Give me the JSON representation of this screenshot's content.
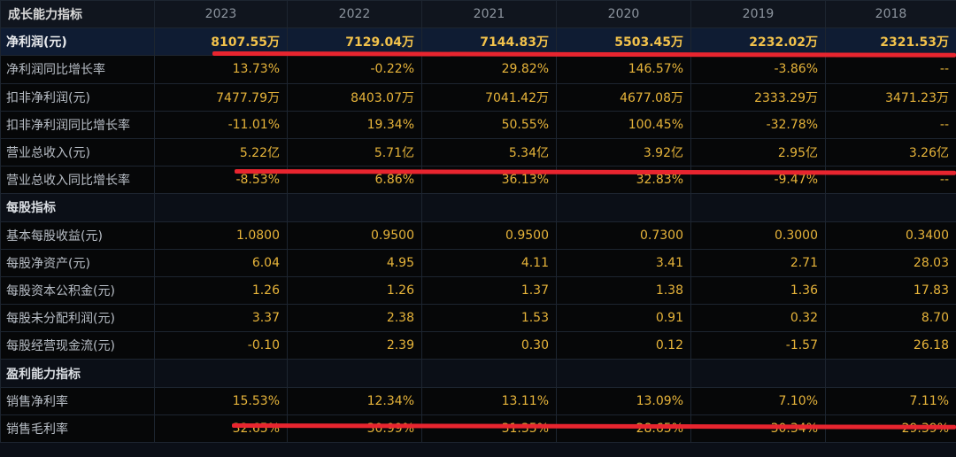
{
  "table": {
    "corner_label": "成长能力指标",
    "years": [
      "2023",
      "2022",
      "2021",
      "2020",
      "2019",
      "2018"
    ],
    "rows": [
      {
        "label": "净利润(元)",
        "values": [
          "8107.55万",
          "7129.04万",
          "7144.83万",
          "5503.45万",
          "2232.02万",
          "2321.53万"
        ],
        "type": "highlight"
      },
      {
        "label": "净利润同比增长率",
        "values": [
          "13.73%",
          "-0.22%",
          "29.82%",
          "146.57%",
          "-3.86%",
          "--"
        ],
        "type": "row"
      },
      {
        "label": "扣非净利润(元)",
        "values": [
          "7477.79万",
          "8403.07万",
          "7041.42万",
          "4677.08万",
          "2333.29万",
          "3471.23万"
        ],
        "type": "row"
      },
      {
        "label": "扣非净利润同比增长率",
        "values": [
          "-11.01%",
          "19.34%",
          "50.55%",
          "100.45%",
          "-32.78%",
          "--"
        ],
        "type": "row"
      },
      {
        "label": "营业总收入(元)",
        "values": [
          "5.22亿",
          "5.71亿",
          "5.34亿",
          "3.92亿",
          "2.95亿",
          "3.26亿"
        ],
        "type": "row"
      },
      {
        "label": "营业总收入同比增长率",
        "values": [
          "-8.53%",
          "6.86%",
          "36.13%",
          "32.83%",
          "-9.47%",
          "--"
        ],
        "type": "row"
      },
      {
        "label": "每股指标",
        "values": [
          "",
          "",
          "",
          "",
          "",
          ""
        ],
        "type": "section"
      },
      {
        "label": "基本每股收益(元)",
        "values": [
          "1.0800",
          "0.9500",
          "0.9500",
          "0.7300",
          "0.3000",
          "0.3400"
        ],
        "type": "row"
      },
      {
        "label": "每股净资产(元)",
        "values": [
          "6.04",
          "4.95",
          "4.11",
          "3.41",
          "2.71",
          "28.03"
        ],
        "type": "row"
      },
      {
        "label": "每股资本公积金(元)",
        "values": [
          "1.26",
          "1.26",
          "1.37",
          "1.38",
          "1.36",
          "17.83"
        ],
        "type": "row"
      },
      {
        "label": "每股未分配利润(元)",
        "values": [
          "3.37",
          "2.38",
          "1.53",
          "0.91",
          "0.32",
          "8.70"
        ],
        "type": "row"
      },
      {
        "label": "每股经营现金流(元)",
        "values": [
          "-0.10",
          "2.39",
          "0.30",
          "0.12",
          "-1.57",
          "26.18"
        ],
        "type": "row"
      },
      {
        "label": "盈利能力指标",
        "values": [
          "",
          "",
          "",
          "",
          "",
          ""
        ],
        "type": "section"
      },
      {
        "label": "销售净利率",
        "values": [
          "15.53%",
          "12.34%",
          "13.11%",
          "13.09%",
          "7.10%",
          "7.11%"
        ],
        "type": "row"
      },
      {
        "label": "销售毛利率",
        "values": [
          "32.65%",
          "30.99%",
          "31.35%",
          "28.65%",
          "30.34%",
          "29.39%"
        ],
        "type": "row"
      }
    ]
  },
  "annotations": {
    "underline_color": "#e8252f",
    "underlined_rows": [
      "净利润(元)",
      "营业总收入(元)",
      "销售净利率"
    ]
  }
}
